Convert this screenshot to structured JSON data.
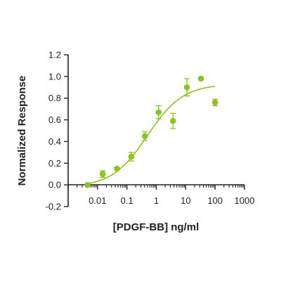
{
  "chart_data": {
    "type": "scatter",
    "xlabel": "[PDGF-BB] ng/ml",
    "ylabel": "Normalized Response",
    "x_scale": "log",
    "xlim": [
      0.001,
      1000
    ],
    "ylim": [
      -0.2,
      1.2
    ],
    "x_ticks": [
      0.01,
      0.1,
      1,
      10,
      100,
      1000
    ],
    "x_tick_labels": [
      "0.01",
      "0.1",
      "1",
      "10",
      "100",
      "1000"
    ],
    "y_ticks": [
      -0.2,
      0.0,
      0.2,
      0.4,
      0.6,
      0.8,
      1.0,
      1.2
    ],
    "y_tick_labels": [
      "-0.2",
      "0.0",
      "0.2",
      "0.4",
      "0.6",
      "0.8",
      "1.0",
      "1.2"
    ],
    "grid": false,
    "color": "#8dc21f",
    "series": [
      {
        "points": [
          {
            "x": 0.0046,
            "y": 0.0,
            "err": 0.0
          },
          {
            "x": 0.015,
            "y": 0.1,
            "err": 0.03
          },
          {
            "x": 0.046,
            "y": 0.15,
            "err": 0.0
          },
          {
            "x": 0.14,
            "y": 0.26,
            "err": 0.04
          },
          {
            "x": 0.41,
            "y": 0.45,
            "err": 0.04
          },
          {
            "x": 1.2,
            "y": 0.67,
            "err": 0.06
          },
          {
            "x": 3.7,
            "y": 0.59,
            "err": 0.07
          },
          {
            "x": 11,
            "y": 0.9,
            "err": 0.08
          },
          {
            "x": 33,
            "y": 0.98,
            "err": 0.0
          },
          {
            "x": 100,
            "y": 0.76,
            "err": 0.03
          }
        ],
        "fit": {
          "type": "4PL",
          "bottom": -0.02,
          "top": 0.93,
          "ec50": 0.5,
          "hill": 0.72
        }
      }
    ]
  }
}
